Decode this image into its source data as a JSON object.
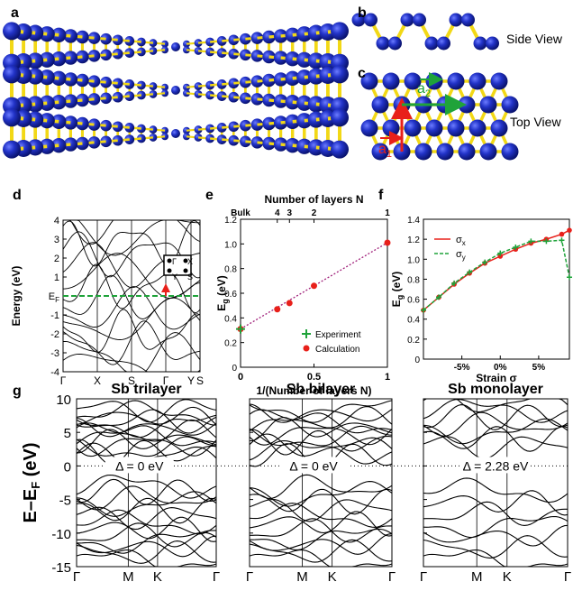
{
  "panel_letters": {
    "a": "a",
    "b": "b",
    "c": "c",
    "d": "d",
    "e": "e",
    "f": "f",
    "g": "g"
  },
  "views": {
    "side": "Side View",
    "top": "Top View"
  },
  "lattice_vectors": {
    "a1": "a",
    "a1_sub": "1",
    "a2": "a",
    "a2_sub": "2",
    "a1_color": "#e8201a",
    "a2_color": "#1fa33a"
  },
  "colors": {
    "atom": "#1f2fb8",
    "bond": "#f2d816",
    "green": "#1fa33a",
    "red": "#e8201a"
  },
  "panel_d": {
    "ylabel": "Energy (eV)",
    "yticks": [
      "4",
      "3",
      "2",
      "1",
      "E",
      "-1",
      "-2",
      "-3",
      "-4"
    ],
    "ef_label": "E",
    "ef_sub": "F",
    "xticks": [
      "Γ",
      "X",
      "S",
      "Γ",
      "Y",
      "S"
    ],
    "bz_labels": {
      "gamma": "Γ",
      "x": "X",
      "y": "Y",
      "s": "S"
    }
  },
  "chart_data": [
    {
      "type": "scatter",
      "title": "Number of layers N",
      "top_ticks": [
        "Bulk",
        "4",
        "3",
        "2",
        "1"
      ],
      "xlabel": "1/(Number of layers N)",
      "ylabel": "E",
      "ylabel_sub": "g",
      "ylabel_unit": "(eV)",
      "xlim": [
        0,
        1
      ],
      "ylim": [
        0,
        1.2
      ],
      "xticks": [
        "0",
        "0.5",
        "1"
      ],
      "yticks": [
        "0",
        "0.2",
        "0.4",
        "0.6",
        "0.8",
        "1.0",
        "1.2"
      ],
      "series": [
        {
          "name": "Experiment",
          "color": "#1fa33a",
          "marker": "plus",
          "x": [
            0
          ],
          "y": [
            0.31
          ]
        },
        {
          "name": "Calculation",
          "color": "#e8201a",
          "marker": "dot",
          "x": [
            0,
            0.25,
            0.333,
            0.5,
            1.0
          ],
          "y": [
            0.31,
            0.47,
            0.52,
            0.66,
            1.01
          ]
        }
      ],
      "fit": {
        "x": [
          0,
          1
        ],
        "y": [
          0.31,
          1.01
        ],
        "color": "#a0207a"
      }
    },
    {
      "type": "line",
      "xlabel": "Strain σ",
      "ylabel": "E",
      "ylabel_sub": "g",
      "ylabel_unit": "(eV)",
      "xlim": [
        -10,
        9
      ],
      "ylim": [
        0,
        1.4
      ],
      "xticks": [
        "-5%",
        "0%",
        "5%"
      ],
      "yticks": [
        "0",
        "0.2",
        "0.4",
        "0.6",
        "0.8",
        "1.0",
        "1.2",
        "1.4"
      ],
      "legend": [
        "σ",
        "σ"
      ],
      "legend_subs": [
        "x",
        "y"
      ],
      "series": [
        {
          "name": "σx",
          "color": "#e8201a",
          "x": [
            -10,
            -8,
            -6,
            -4,
            -2,
            0,
            2,
            4,
            6,
            8,
            9
          ],
          "y": [
            0.49,
            0.62,
            0.75,
            0.86,
            0.96,
            1.03,
            1.1,
            1.16,
            1.2,
            1.25,
            1.29
          ]
        },
        {
          "name": "σy",
          "color": "#1fa33a",
          "x": [
            -10,
            -8,
            -6,
            -4,
            -2,
            0,
            2,
            4,
            6,
            8,
            9
          ],
          "y": [
            0.49,
            0.62,
            0.76,
            0.87,
            0.97,
            1.06,
            1.12,
            1.18,
            1.18,
            1.19,
            0.82
          ]
        }
      ]
    }
  ],
  "panel_g": {
    "ylabel": "E–E",
    "ylabel_sub": "F",
    "ylabel_unit": "(eV)",
    "yticks": [
      "10",
      "5",
      "0",
      "-5",
      "-10",
      "-15"
    ],
    "xticks": [
      "Γ",
      "M",
      "K",
      "Γ"
    ],
    "titles": [
      "Sb trilayer",
      "Sb bilayer",
      "Sb monolayer"
    ],
    "gaps": [
      "Δ = 0 eV",
      "Δ = 0 eV",
      "Δ = 2.28 eV"
    ]
  }
}
